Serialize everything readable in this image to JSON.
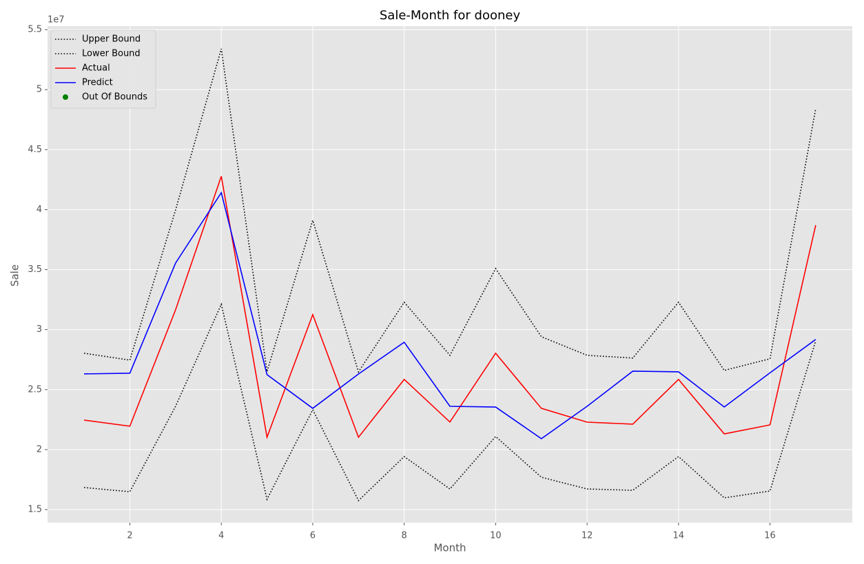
{
  "chart_data": {
    "type": "line",
    "title": "Sale-Month for dooney",
    "x_label": "Month",
    "y_label": "Sale",
    "y_offset_label": "1e7",
    "x": [
      1,
      2,
      3,
      4,
      5,
      6,
      7,
      8,
      9,
      10,
      11,
      12,
      13,
      14,
      15,
      16,
      17
    ],
    "series": [
      {
        "name": "Upper Bound",
        "color": "#000000",
        "style": "dotted",
        "values": [
          2.803,
          2.746,
          3.997,
          5.34,
          2.65,
          3.911,
          2.648,
          3.228,
          2.786,
          3.509,
          2.941,
          2.786,
          2.763,
          3.228,
          2.66,
          2.757,
          4.841
        ]
      },
      {
        "name": "Lower Bound",
        "color": "#000000",
        "style": "dotted",
        "values": [
          1.684,
          1.649,
          2.361,
          3.211,
          1.586,
          2.332,
          1.575,
          1.942,
          1.672,
          2.109,
          1.77,
          1.672,
          1.661,
          1.942,
          1.598,
          1.655,
          2.906
        ]
      },
      {
        "name": "Actual",
        "color": "#ff0000",
        "style": "solid",
        "values": [
          2.246,
          2.195,
          3.165,
          4.278,
          2.103,
          3.125,
          2.103,
          2.585,
          2.23,
          2.803,
          2.344,
          2.229,
          2.212,
          2.585,
          2.131,
          2.206,
          3.871
        ]
      },
      {
        "name": "Predict",
        "color": "#0000ff",
        "style": "solid",
        "values": [
          2.631,
          2.637,
          3.555,
          4.141,
          2.625,
          2.344,
          2.63,
          2.895,
          2.361,
          2.355,
          2.091,
          2.361,
          2.654,
          2.648,
          2.355,
          2.64,
          2.918
        ]
      },
      {
        "name": "Out Of Bounds",
        "color": "#008000",
        "style": "marker",
        "values": [
          null,
          null,
          null,
          null,
          null,
          null,
          null,
          null,
          null,
          null,
          null,
          null,
          null,
          null,
          null,
          null,
          null
        ]
      }
    ],
    "xlim": [
      0.2,
      17.8
    ],
    "xticks": [
      2,
      4,
      6,
      8,
      10,
      12,
      14,
      16
    ],
    "ylim": [
      1.391,
      5.529
    ],
    "yticks": [
      1.5,
      2.0,
      2.5,
      3.0,
      3.5,
      4.0,
      4.5,
      5.0,
      5.5
    ],
    "grid": true,
    "legend": "upper left"
  }
}
